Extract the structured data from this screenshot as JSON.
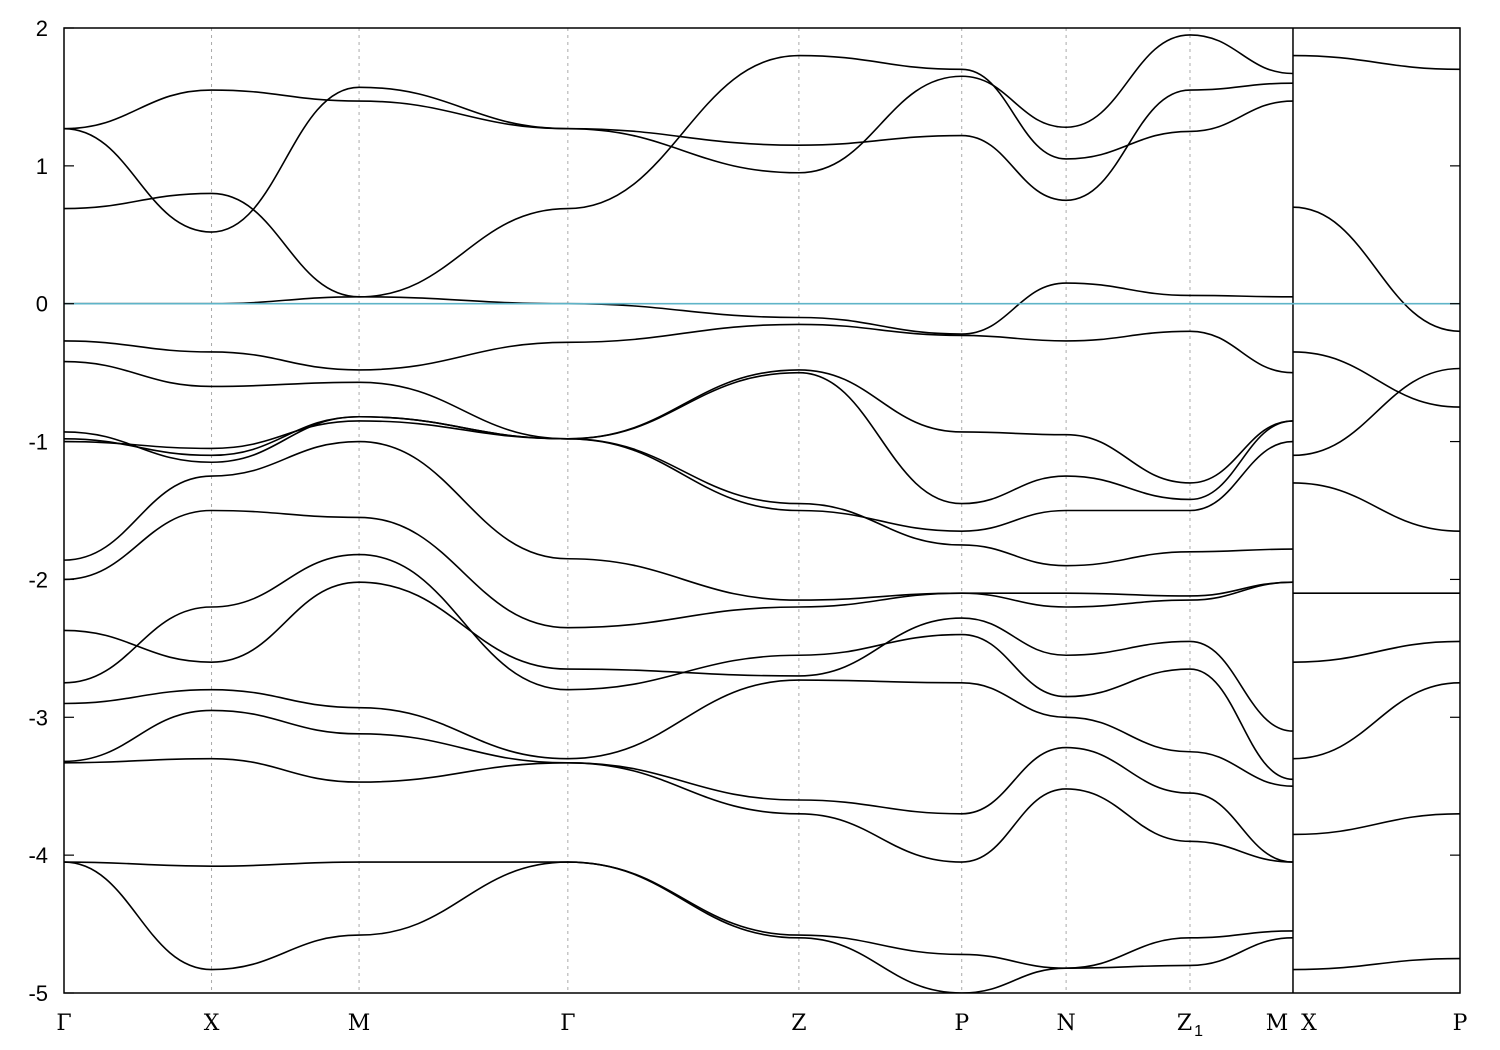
{
  "chart_data": {
    "type": "line",
    "title": "",
    "xlabel": "",
    "ylabel": "",
    "ylim": [
      -5,
      2
    ],
    "yticks": [
      -5,
      -4,
      -3,
      -2,
      -1,
      0,
      1,
      2
    ],
    "grid": "vertical dotted at high-symmetry points",
    "reference_line": {
      "y": 0,
      "color": "#5fb4c8"
    },
    "kpoints": [
      {
        "label": "Γ",
        "sub": "",
        "x": 0.0
      },
      {
        "label": "X",
        "sub": "",
        "x": 1.06
      },
      {
        "label": "M",
        "sub": "",
        "x": 2.12
      },
      {
        "label": "Γ",
        "sub": "",
        "x": 3.62
      },
      {
        "label": "Z",
        "sub": "",
        "x": 5.28
      },
      {
        "label": "P",
        "sub": "",
        "x": 6.45
      },
      {
        "label": "N",
        "sub": "",
        "x": 7.2
      },
      {
        "label": "Z",
        "sub": "1",
        "x": 8.09
      },
      {
        "label": "M",
        "sub": "",
        "x": 8.83
      },
      {
        "label": "X",
        "sub": "",
        "x": 8.83
      },
      {
        "label": "P",
        "sub": "",
        "x": 10.03
      }
    ],
    "segment_break": 8.83,
    "xlim": [
      0,
      10.03
    ],
    "series": [
      {
        "x": [
          0,
          1.06,
          2.12,
          3.62,
          5.28,
          6.45,
          7.2,
          8.09,
          8.83
        ],
        "y": [
          -0.93,
          -1.15,
          -0.82,
          -0.98,
          -0.48,
          -0.93,
          -0.95,
          -1.3,
          -0.85
        ]
      },
      {
        "x": [
          0,
          1.06,
          2.12,
          3.62,
          5.28,
          6.45,
          7.2,
          8.09,
          8.83
        ],
        "y": [
          -0.98,
          -1.1,
          -0.82,
          -0.98,
          -0.5,
          -1.45,
          -1.25,
          -1.42,
          -0.85
        ]
      },
      {
        "x": [
          0,
          1.06,
          2.12,
          3.62,
          5.28,
          6.45,
          7.2,
          8.09,
          8.83
        ],
        "y": [
          -1.0,
          -1.05,
          -0.85,
          -0.98,
          -1.5,
          -1.65,
          -1.5,
          -1.5,
          -1.0
        ]
      },
      {
        "x": [
          0,
          1.06,
          2.12,
          3.62,
          5.28,
          6.45,
          7.2,
          8.09,
          8.83
        ],
        "y": [
          -0.27,
          -0.35,
          -0.48,
          -0.28,
          -0.15,
          -0.23,
          -0.27,
          -0.2,
          -0.5
        ]
      },
      {
        "x": [
          0,
          1.06,
          2.12,
          3.62,
          5.28,
          6.45,
          7.2,
          8.09,
          8.83
        ],
        "y": [
          -0.42,
          -0.6,
          -0.57,
          -0.98,
          -1.45,
          -1.75,
          -1.9,
          -1.8,
          -1.78
        ]
      },
      {
        "x": [
          0,
          1.06,
          2.12,
          3.62,
          5.28,
          6.45,
          7.2,
          8.09,
          8.83
        ],
        "y": [
          -1.86,
          -1.25,
          -1.0,
          -1.85,
          -2.15,
          -2.1,
          -2.1,
          -2.12,
          -2.02
        ]
      },
      {
        "x": [
          0,
          1.06,
          2.12,
          3.62,
          5.28,
          6.45,
          7.2,
          8.09,
          8.83
        ],
        "y": [
          -2.0,
          -1.5,
          -1.55,
          -2.35,
          -2.2,
          -2.1,
          -2.2,
          -2.15,
          -2.02
        ]
      },
      {
        "x": [
          0,
          1.06,
          2.12,
          3.62,
          5.28,
          6.45,
          7.2,
          8.09,
          8.83
        ],
        "y": [
          -2.37,
          -2.6,
          -2.02,
          -2.65,
          -2.7,
          -2.28,
          -2.55,
          -2.45,
          -3.1
        ]
      },
      {
        "x": [
          0,
          1.06,
          2.12,
          3.62,
          5.28,
          6.45,
          7.2,
          8.09,
          8.83
        ],
        "y": [
          -2.75,
          -2.2,
          -1.82,
          -2.8,
          -2.55,
          -2.4,
          -2.85,
          -2.65,
          -3.45
        ]
      },
      {
        "x": [
          0,
          1.06,
          2.12,
          3.62,
          5.28,
          6.45,
          7.2,
          8.09,
          8.83
        ],
        "y": [
          -2.9,
          -2.8,
          -2.93,
          -3.3,
          -2.73,
          -2.75,
          -3.0,
          -3.25,
          -3.5
        ]
      },
      {
        "x": [
          0,
          1.06,
          2.12,
          3.62,
          5.28,
          6.45,
          7.2,
          8.09,
          8.83
        ],
        "y": [
          -3.32,
          -2.95,
          -3.12,
          -3.33,
          -3.6,
          -3.7,
          -3.22,
          -3.55,
          -4.05
        ]
      },
      {
        "x": [
          0,
          1.06,
          2.12,
          3.62,
          5.28,
          6.45,
          7.2,
          8.09,
          8.83
        ],
        "y": [
          -3.33,
          -3.3,
          -3.47,
          -3.33,
          -3.7,
          -4.05,
          -3.52,
          -3.9,
          -4.05
        ]
      },
      {
        "x": [
          0,
          1.06,
          2.12,
          3.62,
          5.28,
          6.45,
          7.2,
          8.09,
          8.83
        ],
        "y": [
          -4.05,
          -4.08,
          -4.05,
          -4.05,
          -4.58,
          -4.72,
          -4.82,
          -4.6,
          -4.55
        ]
      },
      {
        "x": [
          0,
          1.06,
          2.12,
          3.62,
          5.28,
          6.45,
          7.2,
          8.09,
          8.83
        ],
        "y": [
          -4.05,
          -4.83,
          -4.58,
          -4.05,
          -4.6,
          -5.0,
          -4.82,
          -4.8,
          -4.6
        ]
      },
      {
        "x": [
          0,
          1.06,
          2.12,
          3.62,
          5.28,
          6.45,
          7.2,
          8.09,
          8.83
        ],
        "y": [
          0.69,
          0.8,
          0.05,
          0.69,
          1.8,
          1.7,
          1.05,
          1.25,
          1.47
        ]
      },
      {
        "x": [
          0,
          1.06,
          2.12,
          3.62,
          5.28,
          6.45,
          7.2,
          8.09,
          8.83
        ],
        "y": [
          1.27,
          0.52,
          1.57,
          1.27,
          1.15,
          1.22,
          0.75,
          1.55,
          1.6
        ]
      },
      {
        "x": [
          0,
          1.06,
          2.12,
          3.62,
          5.28,
          6.45,
          7.2,
          8.09,
          8.83
        ],
        "y": [
          1.27,
          1.55,
          1.47,
          1.27,
          0.95,
          1.65,
          1.28,
          1.95,
          1.67
        ]
      },
      {
        "x": [
          0,
          1.06,
          2.12,
          3.62,
          5.28,
          6.45,
          7.2,
          8.09,
          8.83
        ],
        "y": [
          0.0,
          0.0,
          0.05,
          0.0,
          -0.1,
          -0.22,
          0.15,
          0.06,
          0.05
        ]
      },
      {
        "x": [
          8.83,
          10.03
        ],
        "y": [
          1.8,
          1.7
        ]
      },
      {
        "x": [
          8.83,
          10.03
        ],
        "y": [
          0.7,
          -0.2
        ]
      },
      {
        "x": [
          8.83,
          10.03
        ],
        "y": [
          -0.35,
          -0.75
        ]
      },
      {
        "x": [
          8.83,
          10.03
        ],
        "y": [
          -1.1,
          -0.47
        ]
      },
      {
        "x": [
          8.83,
          10.03
        ],
        "y": [
          -1.3,
          -1.65
        ]
      },
      {
        "x": [
          8.83,
          10.03
        ],
        "y": [
          -2.1,
          -2.1
        ]
      },
      {
        "x": [
          8.83,
          10.03
        ],
        "y": [
          -2.6,
          -2.45
        ]
      },
      {
        "x": [
          8.83,
          10.03
        ],
        "y": [
          -3.3,
          -2.75
        ]
      },
      {
        "x": [
          8.83,
          10.03
        ],
        "y": [
          -3.85,
          -3.7
        ]
      },
      {
        "x": [
          8.83,
          10.03
        ],
        "y": [
          -4.83,
          -4.75
        ]
      }
    ]
  }
}
